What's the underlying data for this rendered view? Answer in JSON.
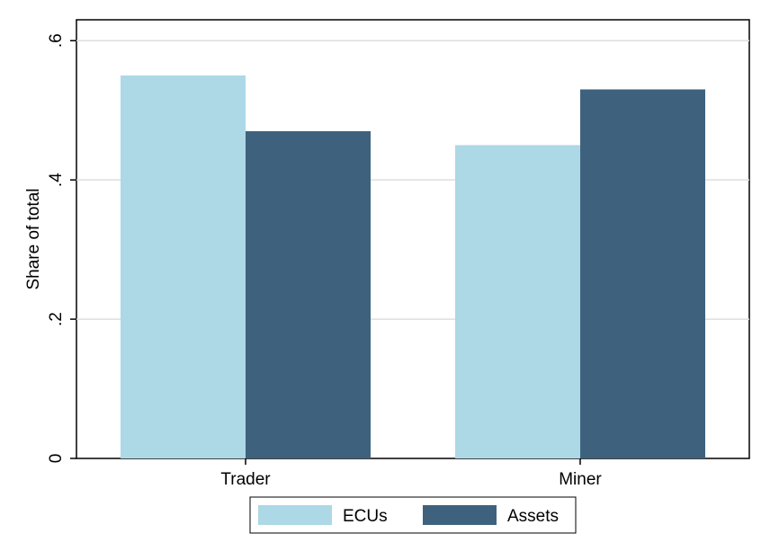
{
  "chart_data": {
    "type": "bar",
    "categories": [
      "Trader",
      "Miner"
    ],
    "series": [
      {
        "name": "ECUs",
        "values": [
          0.55,
          0.45
        ],
        "color": "#add8e6"
      },
      {
        "name": "Assets",
        "values": [
          0.47,
          0.53
        ],
        "color": "#3e627e"
      }
    ],
    "title": "",
    "xlabel": "",
    "ylabel": "Share of total",
    "ylim": [
      0,
      0.63
    ],
    "yticks": [
      0,
      0.2,
      0.4,
      0.6
    ],
    "ytick_labels": [
      "0",
      ".2",
      ".4",
      ".6"
    ],
    "grid": true,
    "legend_position": "bottom"
  }
}
